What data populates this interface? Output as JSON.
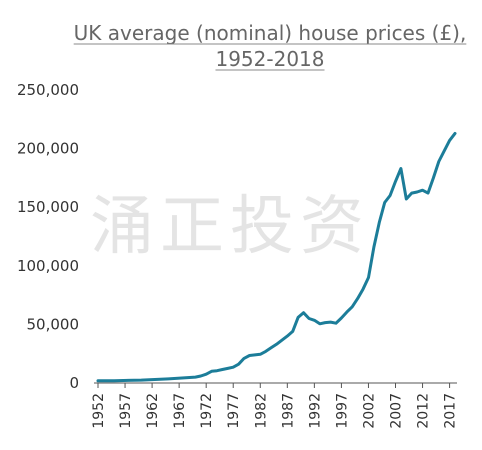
{
  "watermark": "涌正投资",
  "chart_data": {
    "type": "line",
    "title_lines": [
      "UK average (nominal) house prices (£),",
      "1952-2018"
    ],
    "xlabel": "",
    "ylabel": "",
    "ylim": [
      0,
      250000
    ],
    "xlim": [
      1952,
      2018
    ],
    "yticks": [
      0,
      50000,
      100000,
      150000,
      200000,
      250000
    ],
    "ytick_labels": [
      "0",
      "50,000",
      "100,000",
      "150,000",
      "200,000",
      "250,000"
    ],
    "xticks": [
      1952,
      1957,
      1962,
      1967,
      1972,
      1977,
      1982,
      1987,
      1992,
      1997,
      2002,
      2007,
      2012,
      2017
    ],
    "xtick_labels": [
      "1952",
      "1957",
      "1962",
      "1967",
      "1972",
      "1977",
      "1982",
      "1987",
      "1992",
      "1997",
      "2002",
      "2007",
      "2012",
      "2017"
    ],
    "grid": false,
    "color": "#1c7d99",
    "series": [
      {
        "name": "",
        "x": [
          1952,
          1955,
          1960,
          1965,
          1970,
          1971,
          1972,
          1973,
          1974,
          1975,
          1976,
          1977,
          1978,
          1979,
          1980,
          1981,
          1982,
          1983,
          1984,
          1985,
          1986,
          1987,
          1988,
          1989,
          1990,
          1991,
          1992,
          1993,
          1994,
          1995,
          1996,
          1997,
          1998,
          1999,
          2000,
          2001,
          2002,
          2003,
          2004,
          2005,
          2006,
          2007,
          2008,
          2009,
          2010,
          2011,
          2012,
          2013,
          2014,
          2015,
          2016,
          2017,
          2018
        ],
        "y": [
          1900,
          2000,
          2500,
          3500,
          5000,
          6000,
          7500,
          10000,
          10500,
          11500,
          12500,
          13500,
          16000,
          21000,
          23500,
          24000,
          24500,
          27000,
          30000,
          33000,
          36500,
          40000,
          44000,
          56000,
          60000,
          55000,
          53500,
          50500,
          51500,
          52000,
          51000,
          55500,
          60500,
          65000,
          72000,
          80000,
          90000,
          116000,
          137000,
          154000,
          160000,
          172000,
          183000,
          157000,
          162000,
          163000,
          164500,
          162000,
          175000,
          189000,
          198000,
          207000,
          213000
        ]
      }
    ]
  }
}
